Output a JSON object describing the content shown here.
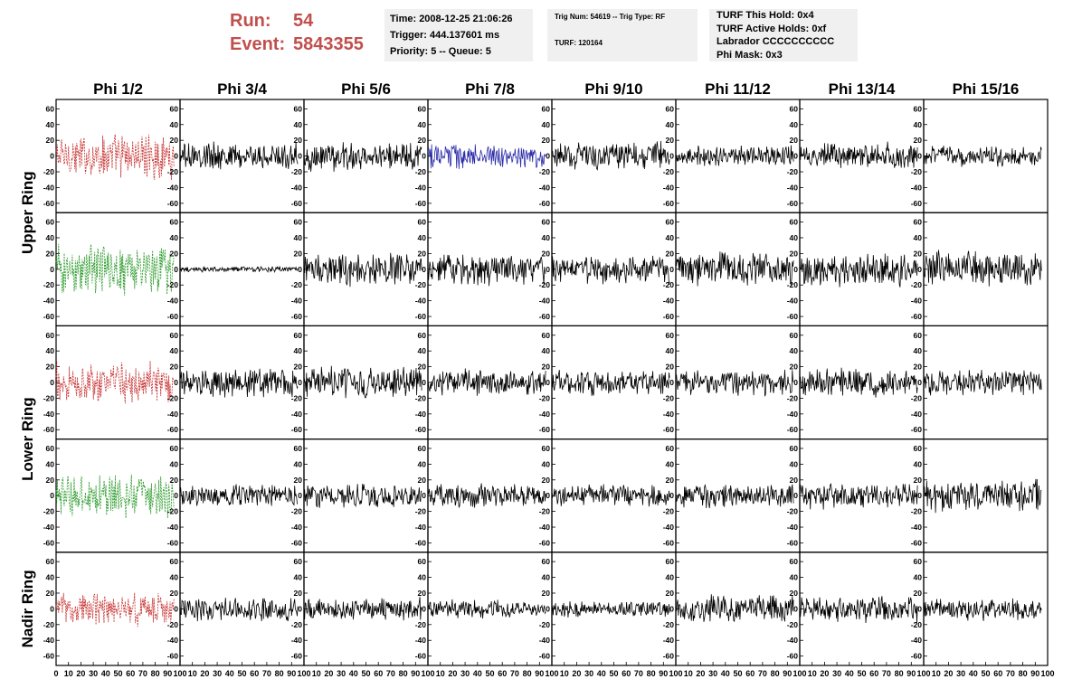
{
  "header": {
    "run_label": "Run:",
    "run_value": "54",
    "event_label": "Event:",
    "event_value": "5843355",
    "time": "Time: 2008-12-25 21:06:26",
    "trigger": "Trigger: 444.137601 ms",
    "priority": "Priority: 5 -- Queue: 5",
    "trig_num": "Trig Num: 54619 -- Trig Type: RF",
    "turf": "TURF: 120164",
    "turf_this_hold": "TURF This Hold: 0x4",
    "turf_active_holds": "TURF Active Holds: 0xf",
    "labrador": "Labrador CCCCCCCCCC",
    "phi_mask": "Phi Mask: 0x3"
  },
  "colors": {
    "header_red": "#c0504d",
    "trace_red": "#c83232",
    "trace_green": "#2a9a2a",
    "trace_blue": "#2a2aa8",
    "trace_black": "#000000"
  },
  "chart_data": {
    "type": "line",
    "columns": [
      "Phi 1/2",
      "Phi 3/4",
      "Phi 5/6",
      "Phi 7/8",
      "Phi 9/10",
      "Phi 11/12",
      "Phi 13/14",
      "Phi 15/16"
    ],
    "ring_labels": [
      "Upper Ring",
      "Lower Ring",
      "Nadir Ring"
    ],
    "xlim": [
      0,
      100
    ],
    "ylim": [
      -65,
      65
    ],
    "x_ticks": [
      "10",
      "20",
      "30",
      "40",
      "50",
      "60",
      "70",
      "80",
      "90",
      "100"
    ],
    "first_x_tick": "0",
    "y_ticks": [
      "-60",
      "-40",
      "-20",
      "0",
      "20",
      "40",
      "60"
    ],
    "trace_end_x": 95,
    "panels": [
      [
        {
          "color": "red",
          "dashed": true,
          "amp": 25
        },
        {
          "color": "black",
          "dashed": false,
          "amp": 15
        },
        {
          "color": "black",
          "dashed": false,
          "amp": 16
        },
        {
          "color": "blue",
          "dashed": false,
          "amp": 14
        },
        {
          "color": "black",
          "dashed": false,
          "amp": 15
        },
        {
          "color": "black",
          "dashed": false,
          "amp": 11
        },
        {
          "color": "black",
          "dashed": false,
          "amp": 15
        },
        {
          "color": "black",
          "dashed": false,
          "amp": 12
        }
      ],
      [
        {
          "color": "green",
          "dashed": true,
          "amp": 28
        },
        {
          "color": "black",
          "dashed": false,
          "amp": 3
        },
        {
          "color": "black",
          "dashed": false,
          "amp": 18
        },
        {
          "color": "black",
          "dashed": false,
          "amp": 18
        },
        {
          "color": "black",
          "dashed": false,
          "amp": 16
        },
        {
          "color": "black",
          "dashed": false,
          "amp": 18
        },
        {
          "color": "black",
          "dashed": false,
          "amp": 18
        },
        {
          "color": "black",
          "dashed": false,
          "amp": 20
        }
      ],
      [
        {
          "color": "red",
          "dashed": true,
          "amp": 22
        },
        {
          "color": "black",
          "dashed": false,
          "amp": 16
        },
        {
          "color": "black",
          "dashed": false,
          "amp": 18
        },
        {
          "color": "black",
          "dashed": false,
          "amp": 14
        },
        {
          "color": "black",
          "dashed": false,
          "amp": 14
        },
        {
          "color": "black",
          "dashed": false,
          "amp": 14
        },
        {
          "color": "black",
          "dashed": false,
          "amp": 16
        },
        {
          "color": "black",
          "dashed": false,
          "amp": 14
        }
      ],
      [
        {
          "color": "green",
          "dashed": true,
          "amp": 24
        },
        {
          "color": "black",
          "dashed": false,
          "amp": 12
        },
        {
          "color": "black",
          "dashed": false,
          "amp": 13
        },
        {
          "color": "black",
          "dashed": false,
          "amp": 13
        },
        {
          "color": "black",
          "dashed": false,
          "amp": 12
        },
        {
          "color": "black",
          "dashed": false,
          "amp": 13
        },
        {
          "color": "black",
          "dashed": false,
          "amp": 14
        },
        {
          "color": "black",
          "dashed": false,
          "amp": 18
        }
      ],
      [
        {
          "color": "red",
          "dashed": true,
          "amp": 18
        },
        {
          "color": "black",
          "dashed": false,
          "amp": 13
        },
        {
          "color": "black",
          "dashed": false,
          "amp": 12
        },
        {
          "color": "black",
          "dashed": false,
          "amp": 10
        },
        {
          "color": "black",
          "dashed": false,
          "amp": 9
        },
        {
          "color": "black",
          "dashed": false,
          "amp": 15
        },
        {
          "color": "black",
          "dashed": false,
          "amp": 14
        },
        {
          "color": "black",
          "dashed": false,
          "amp": 12
        }
      ]
    ]
  }
}
